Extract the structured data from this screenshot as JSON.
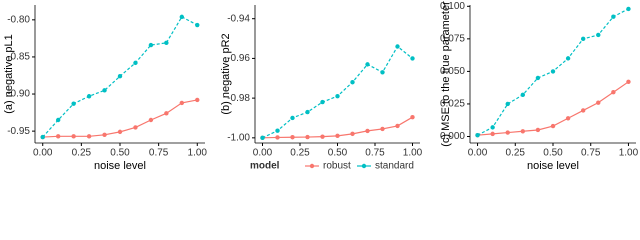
{
  "chart_data": [
    {
      "type": "line",
      "ylabel": "(a) negative pL1",
      "xlabel": "noise level",
      "x": [
        0,
        0.1,
        0.2,
        0.3,
        0.4,
        0.5,
        0.6,
        0.7,
        0.8,
        0.9,
        1.0
      ],
      "xlim": [
        -0.05,
        1.05
      ],
      "xticks": [
        {
          "value": 0,
          "label": "0.00"
        },
        {
          "value": 0.25,
          "label": "0.25"
        },
        {
          "value": 0.5,
          "label": "0.50"
        },
        {
          "value": 0.75,
          "label": "0.75"
        },
        {
          "value": 1,
          "label": "1.00"
        }
      ],
      "ylim": [
        -0.966,
        -0.78
      ],
      "yticks": [
        {
          "value": -0.95,
          "label": "-0.95"
        },
        {
          "value": -0.9,
          "label": "-0.90"
        },
        {
          "value": -0.85,
          "label": "-0.85"
        },
        {
          "value": -0.8,
          "label": "-0.80"
        }
      ],
      "series": [
        {
          "name": "robust",
          "color": "#f8766d",
          "linestyle": "solid",
          "values": [
            -0.958,
            -0.957,
            -0.957,
            -0.957,
            -0.955,
            -0.951,
            -0.945,
            -0.935,
            -0.926,
            -0.912,
            -0.908
          ]
        },
        {
          "name": "standard",
          "color": "#00bfc4",
          "linestyle": "dashed",
          "values": [
            -0.958,
            -0.935,
            -0.913,
            -0.903,
            -0.895,
            -0.876,
            -0.858,
            -0.834,
            -0.831,
            -0.796,
            -0.807
          ]
        }
      ]
    },
    {
      "type": "line",
      "ylabel": "(b) negative pR2",
      "legend_title": "model",
      "legend": "bottom",
      "x": [
        0,
        0.1,
        0.2,
        0.3,
        0.4,
        0.5,
        0.6,
        0.7,
        0.8,
        0.9,
        1.0
      ],
      "xlim": [
        -0.05,
        1.05
      ],
      "xticks": [
        {
          "value": 0,
          "label": "0.00"
        },
        {
          "value": 0.25,
          "label": "0.25"
        },
        {
          "value": 0.5,
          "label": "0.50"
        },
        {
          "value": 0.75,
          "label": "0.75"
        },
        {
          "value": 1,
          "label": "1.00"
        }
      ],
      "ylim": [
        -1.0026,
        -0.9331
      ],
      "yticks": [
        {
          "value": -1,
          "label": "-1.00"
        },
        {
          "value": -0.98,
          "label": "-0.98"
        },
        {
          "value": -0.96,
          "label": "-0.96"
        },
        {
          "value": -0.94,
          "label": "-0.94"
        }
      ],
      "series": [
        {
          "name": "robust",
          "color": "#f8766d",
          "linestyle": "solid",
          "values": [
            -1.0,
            -0.9998,
            -0.9997,
            -0.9996,
            -0.9994,
            -0.999,
            -0.998,
            -0.9965,
            -0.9955,
            -0.994,
            -0.9896
          ]
        },
        {
          "name": "standard",
          "color": "#00bfc4",
          "linestyle": "dashed",
          "values": [
            -1.0,
            -0.9964,
            -0.99,
            -0.987,
            -0.982,
            -0.979,
            -0.972,
            -0.963,
            -0.967,
            -0.954,
            -0.96
          ]
        }
      ]
    },
    {
      "type": "line",
      "ylabel": "(c) MSE to the true parameter",
      "xlabel": "noise level",
      "x": [
        0,
        0.1,
        0.2,
        0.3,
        0.4,
        0.5,
        0.6,
        0.7,
        0.8,
        0.9,
        1.0
      ],
      "xlim": [
        -0.05,
        1.05
      ],
      "xticks": [
        {
          "value": 0,
          "label": "0.00"
        },
        {
          "value": 0.25,
          "label": "0.25"
        },
        {
          "value": 0.5,
          "label": "0.50"
        },
        {
          "value": 0.75,
          "label": "0.75"
        },
        {
          "value": 1,
          "label": "1.00"
        }
      ],
      "ylim": [
        -0.005,
        0.101
      ],
      "yticks": [
        {
          "value": 0,
          "label": "0.000"
        },
        {
          "value": 0.025,
          "label": "0.025"
        },
        {
          "value": 0.05,
          "label": "0.050"
        },
        {
          "value": 0.075,
          "label": "0.075"
        },
        {
          "value": 0.1,
          "label": "0.100"
        }
      ],
      "series": [
        {
          "name": "robust",
          "color": "#f8766d",
          "linestyle": "solid",
          "values": [
            0.001,
            0.002,
            0.003,
            0.004,
            0.005,
            0.008,
            0.014,
            0.02,
            0.026,
            0.034,
            0.042
          ]
        },
        {
          "name": "standard",
          "color": "#00bfc4",
          "linestyle": "dashed",
          "values": [
            0.001,
            0.007,
            0.025,
            0.032,
            0.045,
            0.05,
            0.06,
            0.075,
            0.078,
            0.092,
            0.098
          ]
        }
      ]
    }
  ]
}
